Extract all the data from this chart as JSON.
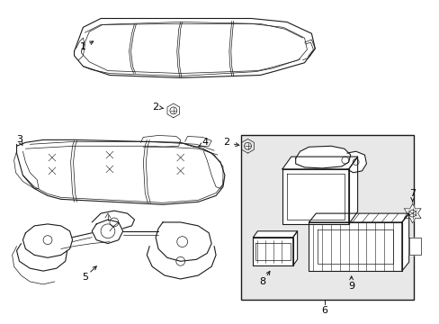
{
  "bg_color": "#ffffff",
  "line_color": "#1a1a1a",
  "box_bg": "#e8e8e8",
  "figsize": [
    4.89,
    3.6
  ],
  "dpi": 100
}
